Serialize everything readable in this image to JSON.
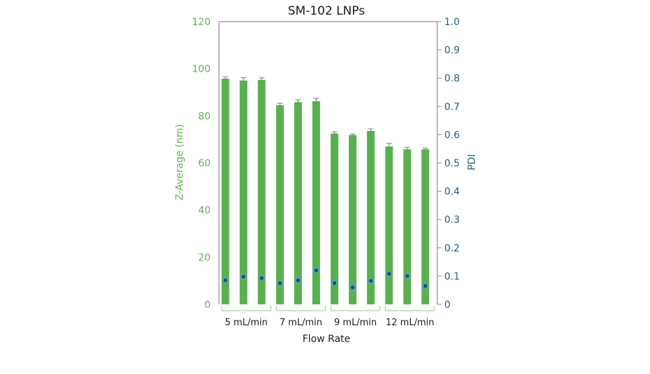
{
  "chart_data": {
    "type": "bar",
    "title": "SM-102 LNPs",
    "xlabel": "Flow Rate",
    "ylabel": "Z-Average (nm)",
    "y2label": "PDI",
    "ylim": [
      0,
      120
    ],
    "y2lim": [
      0,
      1.0
    ],
    "yticks": [
      0,
      20,
      40,
      60,
      80,
      100,
      120
    ],
    "y2ticks": [
      "0",
      "0.1",
      "0.2",
      "0.3",
      "0.4",
      "0.5",
      "0.6",
      "0.7",
      "0.8",
      "0.9",
      "1.0"
    ],
    "groups": [
      {
        "label": "5 mL/min",
        "z_average": [
          95.8,
          95.0,
          95.2
        ],
        "z_error": [
          0.8,
          1.2,
          0.9
        ],
        "pdi": [
          0.085,
          0.098,
          0.093
        ],
        "pdi_error": [
          0.02,
          0.01,
          0.02
        ]
      },
      {
        "label": "7 mL/min",
        "z_average": [
          84.5,
          85.8,
          86.2
        ],
        "z_error": [
          0.9,
          1.0,
          1.2
        ],
        "pdi": [
          0.075,
          0.085,
          0.12
        ],
        "pdi_error": [
          0.01,
          0.01,
          0.02
        ]
      },
      {
        "label": "9 mL/min",
        "z_average": [
          72.5,
          71.8,
          73.6
        ],
        "z_error": [
          0.7,
          0.5,
          0.9
        ],
        "pdi": [
          0.075,
          0.06,
          0.083
        ],
        "pdi_error": [
          0.02,
          0.02,
          0.01
        ]
      },
      {
        "label": "12 mL/min",
        "z_average": [
          67.0,
          65.8,
          65.8
        ],
        "z_error": [
          1.3,
          0.8,
          0.6
        ],
        "pdi": [
          0.108,
          0.1,
          0.065
        ],
        "pdi_error": [
          0.02,
          0.03,
          0.02
        ]
      }
    ],
    "colors": {
      "bar": "#58b04f",
      "left_axis": "#5cb450",
      "right_axis": "#1e5f7e",
      "point_fill": "#1f4e79",
      "point_stroke": "#5aa9d6",
      "error": "#7a7a7a",
      "frame": "#8a8a8a",
      "bracket": "#a5d49c"
    }
  }
}
